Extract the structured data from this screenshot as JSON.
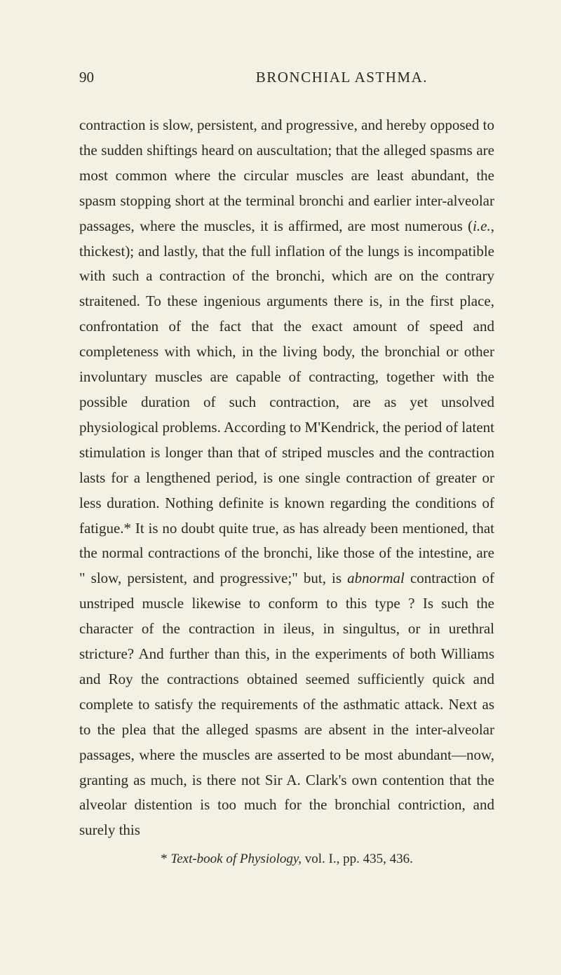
{
  "page": {
    "number": "90",
    "chapter_title": "BRONCHIAL ASTHMA.",
    "body": "contraction is slow, persistent, and progressive, and hereby opposed to the sudden shiftings heard on auscultation; that the alleged spasms are most common where the circular muscles are least abundant, the spasm stopping short at the terminal bronchi and earlier inter-alveolar passages, where the muscles, it is affirmed, are most numerous (",
    "italic1": "i.e.",
    "body2": ", thickest); and lastly, that the full inflation of the lungs is incompatible with such a contraction of the bronchi, which are on the contrary straitened. To these ingenious arguments there is, in the first place, confrontation of the fact that the exact amount of speed and completeness with which, in the living body, the bronchial or other involuntary muscles are capable of contracting, together with the possible duration of such contraction, are as yet unsolved physiological problems. According to M'Kendrick, the period of latent stimulation is longer than that of striped muscles and the contraction lasts for a lengthened period, is one single contraction of greater or less duration. Nothing definite is known regarding the conditions of fatigue.* It is no doubt quite true, as has already been mentioned, that the normal contractions of the bronchi, like those of the intestine, are \" slow, persistent, and progressive;\" but, is ",
    "italic2": "abnormal",
    "body3": " contraction of unstriped muscle likewise to conform to this type ? Is such the character of the contraction in ileus, in singultus, or in urethral stricture? And further than this, in the experiments of both Williams and Roy the contractions obtained seemed sufficiently quick and complete to satisfy the requirements of the asthmatic attack. Next as to the plea that the alleged spasms are absent in the inter-alveolar passages, where the muscles are asserted to be most abundant—now, granting as much, is there not Sir A. Clark's own contention that the alveolar distention is too much for the bronchial contriction, and surely this",
    "footnote_marker": "* ",
    "footnote_italic": "Text-book of Physiology,",
    "footnote_end": " vol. I., pp. 435, 436."
  },
  "colors": {
    "background": "#f4f0e3",
    "text": "#2a2822"
  },
  "typography": {
    "body_fontsize": 21,
    "line_height": 1.71,
    "footnote_fontsize": 19
  }
}
